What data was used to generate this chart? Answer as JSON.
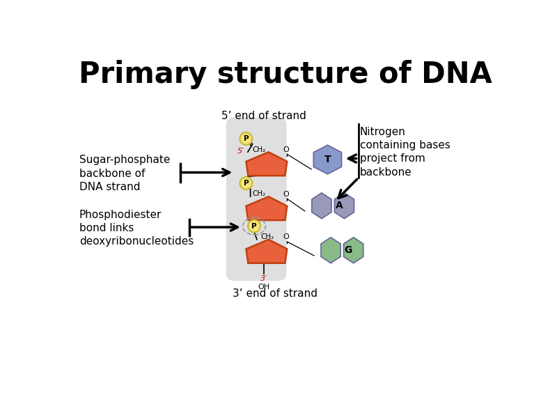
{
  "title": "Primary structure of DNA",
  "title_fontsize": 30,
  "title_fontweight": "bold",
  "bg_color": "#ffffff",
  "sugar_color": "#E8603C",
  "sugar_edge_color": "#C04010",
  "phosphate_color": "#F5E57A",
  "phosphate_border": "#C8B830",
  "base_T_color": "#8899CC",
  "base_A_color": "#9999BB",
  "base_G_color": "#88BB88",
  "shadow_color": "#DCDCDC",
  "label_sugar_phosphate": "Sugar-phosphate\nbackbone of\nDNA strand",
  "label_phosphodiester": "Phosphodiester\nbond links\ndeoxyribonucleotides",
  "label_5prime": "5’ end of strand",
  "label_3prime": "3’ end of strand",
  "label_nitrogen": "Nitrogen\ncontaining bases\nproject from\nbackbone",
  "label_T": "T",
  "label_A": "A",
  "label_G": "G",
  "label_P": "P",
  "label_CH2": "CH₂",
  "label_O": "O",
  "label_OH": "OH",
  "label_5tick": "5′",
  "label_3tick": "3′"
}
